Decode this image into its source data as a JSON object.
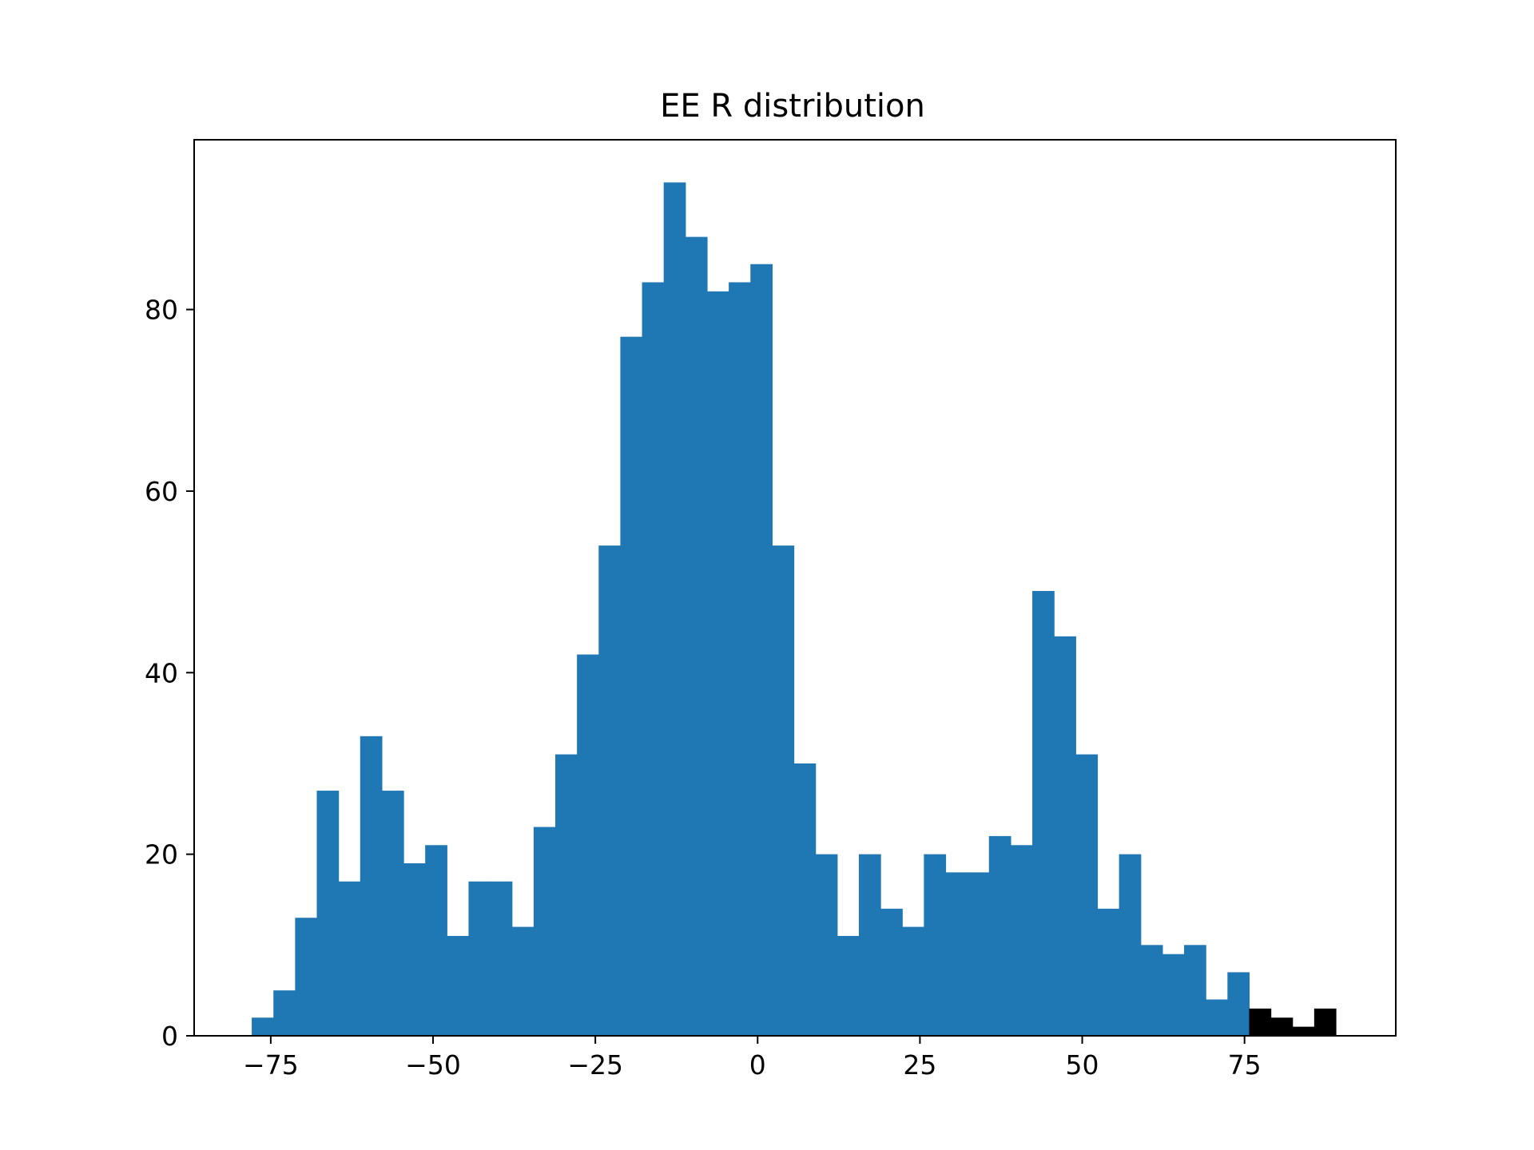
{
  "chart_data": {
    "type": "bar",
    "title": "EE R distribution",
    "xlabel": "",
    "ylabel": "",
    "xlim": [
      -86.8,
      98.3
    ],
    "ylim": [
      0,
      98.7
    ],
    "grid": false,
    "legend": "none",
    "bin_width": 3.34,
    "bin_start": -77.93,
    "xticks": [
      -75,
      -50,
      -25,
      0,
      25,
      50,
      75
    ],
    "xtick_labels": [
      "−75",
      "−50",
      "−25",
      "0",
      "25",
      "50",
      "75"
    ],
    "yticks": [
      0,
      20,
      40,
      60,
      80
    ],
    "ytick_labels": [
      "0",
      "20",
      "40",
      "60",
      "80"
    ],
    "series": [
      {
        "color": "#1f77b4",
        "values": [
          2,
          5,
          13,
          27,
          17,
          33,
          27,
          19,
          21,
          11,
          17,
          17,
          12,
          23,
          31,
          42,
          54,
          77,
          83,
          94,
          88,
          82,
          83,
          85,
          54,
          30,
          20,
          11,
          20,
          14,
          12,
          20,
          18,
          18,
          22,
          21,
          49,
          44,
          31,
          14,
          20,
          10,
          9,
          10,
          4,
          7
        ]
      },
      {
        "color": "#000000",
        "start_index": 46,
        "values": [
          3,
          2,
          1,
          3
        ]
      }
    ]
  }
}
